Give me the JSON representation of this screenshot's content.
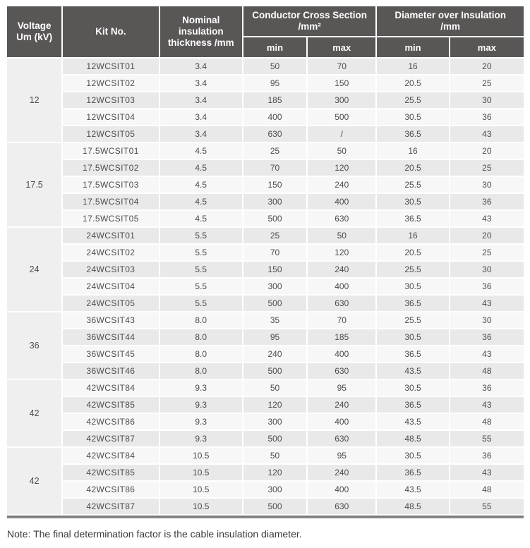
{
  "colors": {
    "header_bg": "#595656",
    "header_text": "#ffffff",
    "stripe_dark": "#e9e9e9",
    "stripe_light": "#f7f7f7",
    "voltage_bg": "#efefef",
    "cell_text": "#4c4c4c",
    "rule_color": "#8a8888",
    "note_text": "#3a3a3a"
  },
  "header": {
    "voltage_line1": "Voltage",
    "voltage_line2": "Um (kV)",
    "kit": "Kit No.",
    "nominal_line1": "Nominal insulation",
    "nominal_line2": "thickness /mm",
    "ccs_line1": "Conductor Cross Section",
    "ccs_line2": "/mm²",
    "doi_line1": "Diameter over Insulation",
    "doi_line2": "/mm",
    "min": "min",
    "max": "max"
  },
  "groups": [
    {
      "voltage": "12",
      "rows": [
        {
          "kit": "12WCSIT01",
          "thickness": "3.4",
          "ccs_min": "50",
          "ccs_max": "70",
          "dia_min": "16",
          "dia_max": "20"
        },
        {
          "kit": "12WCSIT02",
          "thickness": "3.4",
          "ccs_min": "95",
          "ccs_max": "150",
          "dia_min": "20.5",
          "dia_max": "25"
        },
        {
          "kit": "12WCSIT03",
          "thickness": "3.4",
          "ccs_min": "185",
          "ccs_max": "300",
          "dia_min": "25.5",
          "dia_max": "30"
        },
        {
          "kit": "12WCSIT04",
          "thickness": "3.4",
          "ccs_min": "400",
          "ccs_max": "500",
          "dia_min": "30.5",
          "dia_max": "36"
        },
        {
          "kit": "12WCSIT05",
          "thickness": "3.4",
          "ccs_min": "630",
          "ccs_max": "/",
          "dia_min": "36.5",
          "dia_max": "43"
        }
      ]
    },
    {
      "voltage": "17.5",
      "rows": [
        {
          "kit": "17.5WCSIT01",
          "thickness": "4.5",
          "ccs_min": "25",
          "ccs_max": "50",
          "dia_min": "16",
          "dia_max": "20"
        },
        {
          "kit": "17.5WCSIT02",
          "thickness": "4.5",
          "ccs_min": "70",
          "ccs_max": "120",
          "dia_min": "20.5",
          "dia_max": "25"
        },
        {
          "kit": "17.5WCSIT03",
          "thickness": "4.5",
          "ccs_min": "150",
          "ccs_max": "240",
          "dia_min": "25.5",
          "dia_max": "30"
        },
        {
          "kit": "17.5WCSIT04",
          "thickness": "4.5",
          "ccs_min": "300",
          "ccs_max": "400",
          "dia_min": "30.5",
          "dia_max": "36"
        },
        {
          "kit": "17.5WCSIT05",
          "thickness": "4.5",
          "ccs_min": "500",
          "ccs_max": "630",
          "dia_min": "36.5",
          "dia_max": "43"
        }
      ]
    },
    {
      "voltage": "24",
      "rows": [
        {
          "kit": "24WCSIT01",
          "thickness": "5.5",
          "ccs_min": "25",
          "ccs_max": "50",
          "dia_min": "16",
          "dia_max": "20"
        },
        {
          "kit": "24WCSIT02",
          "thickness": "5.5",
          "ccs_min": "70",
          "ccs_max": "120",
          "dia_min": "20.5",
          "dia_max": "25"
        },
        {
          "kit": "24WCSIT03",
          "thickness": "5.5",
          "ccs_min": "150",
          "ccs_max": "240",
          "dia_min": "25.5",
          "dia_max": "30"
        },
        {
          "kit": "24WCSIT04",
          "thickness": "5.5",
          "ccs_min": "300",
          "ccs_max": "400",
          "dia_min": "30.5",
          "dia_max": "36"
        },
        {
          "kit": "24WCSIT05",
          "thickness": "5.5",
          "ccs_min": "500",
          "ccs_max": "630",
          "dia_min": "36.5",
          "dia_max": "43"
        }
      ]
    },
    {
      "voltage": "36",
      "rows": [
        {
          "kit": "36WCSIT43",
          "thickness": "8.0",
          "ccs_min": "35",
          "ccs_max": "70",
          "dia_min": "25.5",
          "dia_max": "30"
        },
        {
          "kit": "36WCSIT44",
          "thickness": "8.0",
          "ccs_min": "95",
          "ccs_max": "185",
          "dia_min": "30.5",
          "dia_max": "36"
        },
        {
          "kit": "36WCSIT45",
          "thickness": "8.0",
          "ccs_min": "240",
          "ccs_max": "400",
          "dia_min": "36.5",
          "dia_max": "43"
        },
        {
          "kit": "36WCSIT46",
          "thickness": "8.0",
          "ccs_min": "500",
          "ccs_max": "630",
          "dia_min": "43.5",
          "dia_max": "48"
        }
      ]
    },
    {
      "voltage": "42",
      "rows": [
        {
          "kit": "42WCSIT84",
          "thickness": "9.3",
          "ccs_min": "50",
          "ccs_max": "95",
          "dia_min": "30.5",
          "dia_max": "36"
        },
        {
          "kit": "42WCSIT85",
          "thickness": "9.3",
          "ccs_min": "120",
          "ccs_max": "240",
          "dia_min": "36.5",
          "dia_max": "43"
        },
        {
          "kit": "42WCSIT86",
          "thickness": "9.3",
          "ccs_min": "300",
          "ccs_max": "400",
          "dia_min": "43.5",
          "dia_max": "48"
        },
        {
          "kit": "42WCSIT87",
          "thickness": "9.3",
          "ccs_min": "500",
          "ccs_max": "630",
          "dia_min": "48.5",
          "dia_max": "55"
        }
      ]
    },
    {
      "voltage": "42",
      "rows": [
        {
          "kit": "42WCSIT84",
          "thickness": "10.5",
          "ccs_min": "50",
          "ccs_max": "95",
          "dia_min": "30.5",
          "dia_max": "36"
        },
        {
          "kit": "42WCSIT85",
          "thickness": "10.5",
          "ccs_min": "120",
          "ccs_max": "240",
          "dia_min": "36.5",
          "dia_max": "43"
        },
        {
          "kit": "42WCSIT86",
          "thickness": "10.5",
          "ccs_min": "300",
          "ccs_max": "400",
          "dia_min": "43.5",
          "dia_max": "48"
        },
        {
          "kit": "42WCSIT87",
          "thickness": "10.5",
          "ccs_min": "500",
          "ccs_max": "630",
          "dia_min": "48.5",
          "dia_max": "55"
        }
      ]
    }
  ],
  "note": "Note: The final determination factor is the cable insulation diameter."
}
